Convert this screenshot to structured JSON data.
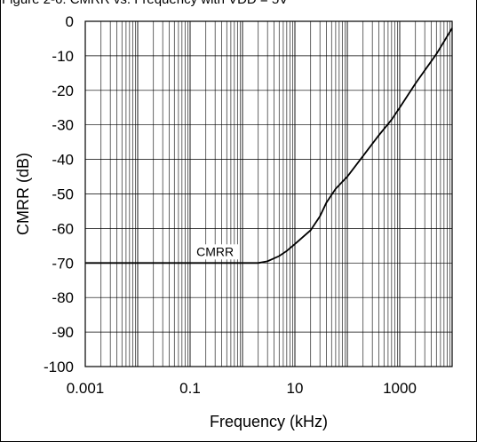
{
  "header": {
    "caption": "Figure 2-6: CMRR vs. Frequency with VDD = 5V"
  },
  "chart_data": {
    "type": "line",
    "xlabel": "Frequency (kHz)",
    "ylabel": "CMRR (dB)",
    "xscale": "log",
    "xlim": [
      0.001,
      10000
    ],
    "ylim": [
      -100,
      0
    ],
    "grid": true,
    "x_ticks": [
      "0.001",
      "0.1",
      "10",
      "1000"
    ],
    "y_ticks": [
      "0",
      "-10",
      "-20",
      "-30",
      "-40",
      "-50",
      "-60",
      "-70",
      "-80",
      "-90",
      "-100"
    ],
    "annotation": "CMRR",
    "series": [
      {
        "name": "CMRR",
        "x": [
          0.001,
          0.01,
          0.1,
          1,
          2,
          3,
          5,
          7,
          10,
          20,
          30,
          40,
          60,
          100,
          200,
          400,
          700,
          1000,
          2000,
          5000,
          10000
        ],
        "y": [
          -70,
          -70,
          -70,
          -70,
          -70,
          -69.5,
          -68,
          -66.5,
          -64.5,
          -60.5,
          -56.5,
          -52.5,
          -48.5,
          -45,
          -39,
          -33,
          -28.5,
          -25,
          -18,
          -9.5,
          -2
        ]
      }
    ]
  }
}
